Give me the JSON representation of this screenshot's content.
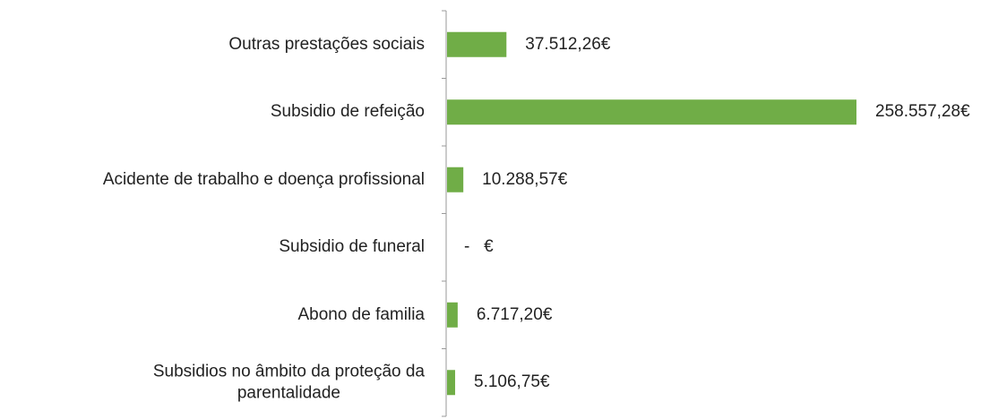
{
  "chart_data": {
    "type": "bar",
    "orientation": "horizontal",
    "categories": [
      "Outras prestações sociais",
      "Subsidio de refeição",
      "Acidente de trabalho e doença profissional",
      "Subsidio de funeral",
      "Abono de familia",
      "Subsidios no âmbito da proteção da\nparentalidade"
    ],
    "values": [
      37512.26,
      258557.28,
      10288.57,
      0,
      6717.2,
      5106.75
    ],
    "value_labels": [
      "37.512,26€",
      "258.557,28€",
      "10.288,57€",
      "-   €",
      "6.717,20€",
      "5.106,75€"
    ],
    "color": "#70ad47"
  }
}
